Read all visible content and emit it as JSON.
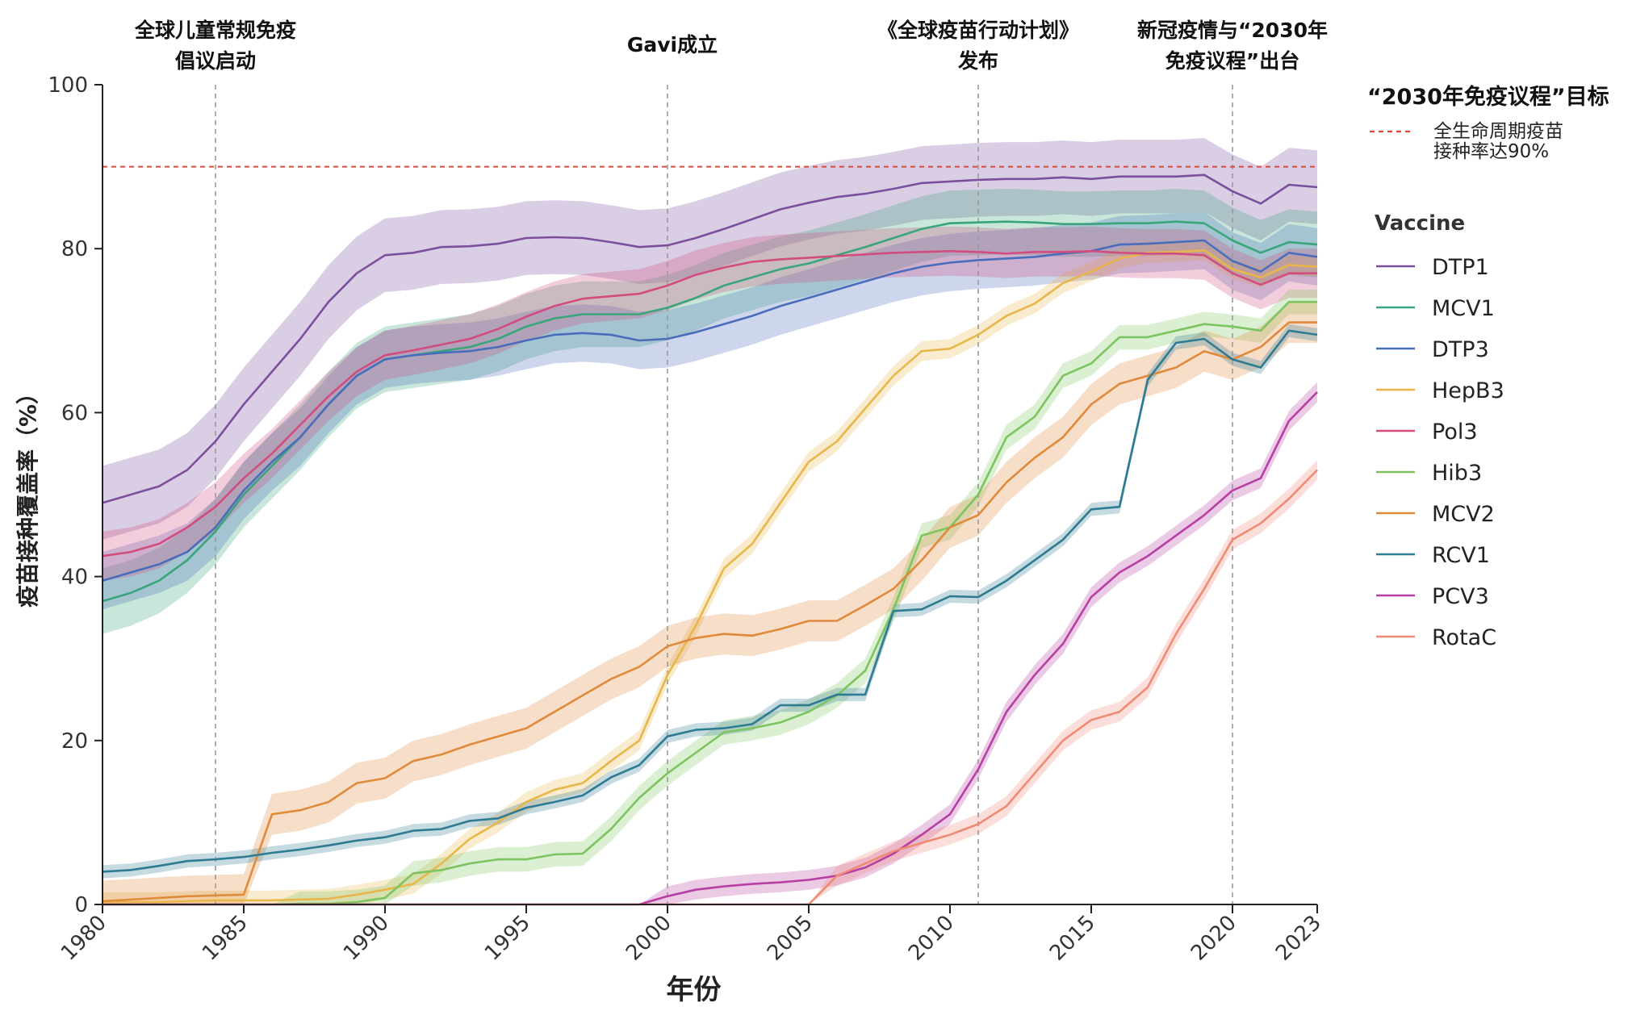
{
  "chart_data": {
    "type": "line",
    "xlabel": "年份",
    "ylabel": "疫苗接种覆盖率（%）",
    "xlim": [
      1980,
      2023
    ],
    "ylim": [
      0,
      100
    ],
    "x_ticks": [
      "1980",
      "1985",
      "1990",
      "1995",
      "2000",
      "2005",
      "2010",
      "2015",
      "2020",
      "2023"
    ],
    "y_ticks": [
      "0",
      "20",
      "40",
      "60",
      "80",
      "100"
    ],
    "grid": false,
    "legend_position": "right",
    "target": {
      "heading": "“2030年免疫议程”目标",
      "line1": "全生命周期疫苗",
      "line2": "接种率达90%",
      "value": 90,
      "color": "#d9473f"
    },
    "legend_title": "Vaccine",
    "events": [
      {
        "x": 1984,
        "line1": "全球儿童常规免疫",
        "line2": "倡议启动"
      },
      {
        "x": 2000,
        "line1": "Gavi成立",
        "line2": ""
      },
      {
        "x": 2011,
        "line1": "《全球疫苗行动计划》",
        "line2": "发布"
      },
      {
        "x": 2020,
        "line1": "新冠疫情与“2030年",
        "line2": "免疫议程”出台"
      }
    ],
    "x": [
      1980,
      1981,
      1982,
      1983,
      1984,
      1985,
      1986,
      1987,
      1988,
      1989,
      1990,
      1991,
      1992,
      1993,
      1994,
      1995,
      1996,
      1997,
      1998,
      1999,
      2000,
      2001,
      2002,
      2003,
      2004,
      2005,
      2006,
      2007,
      2008,
      2009,
      2010,
      2011,
      2012,
      2013,
      2014,
      2015,
      2016,
      2017,
      2018,
      2019,
      2020,
      2021,
      2022,
      2023
    ],
    "series": [
      {
        "name": "DTP1",
        "color": "#7b4f9d",
        "band": 4.5,
        "values": [
          49,
          50,
          51,
          53,
          56.5,
          61,
          65,
          69,
          73.5,
          77,
          79.2,
          79.5,
          80.2,
          80.3,
          80.6,
          81.3,
          81.4,
          81.3,
          80.8,
          80.2,
          80.4,
          81.3,
          82.4,
          83.6,
          84.8,
          85.6,
          86.3,
          86.7,
          87.3,
          88,
          88.2,
          88.4,
          88.5,
          88.5,
          88.7,
          88.5,
          88.8,
          88.8,
          88.8,
          89,
          87,
          85.5,
          87.8,
          87.5
        ]
      },
      {
        "name": "MCV1",
        "color": "#3aa57a",
        "band": 4,
        "values": [
          37,
          38,
          39.5,
          42,
          45.5,
          50,
          53.5,
          57,
          61,
          64.5,
          66.5,
          67,
          67.5,
          68,
          69,
          70.5,
          71.5,
          72,
          72,
          72,
          72.8,
          74,
          75.5,
          76.5,
          77.5,
          78.2,
          79.2,
          80.2,
          81.3,
          82.4,
          83.1,
          83.2,
          83.3,
          83.2,
          83,
          83,
          83.1,
          83.1,
          83.3,
          83.1,
          81,
          79.5,
          80.8,
          80.5
        ]
      },
      {
        "name": "DTP3",
        "color": "#4a6dbb",
        "band": 3.5,
        "values": [
          39.5,
          40.5,
          41.5,
          43,
          46,
          50.5,
          54,
          57,
          61,
          64.5,
          66.5,
          67,
          67.3,
          67.5,
          68,
          68.8,
          69.5,
          69.7,
          69.5,
          68.8,
          69,
          69.8,
          70.8,
          71.8,
          73,
          74,
          75,
          76,
          77,
          77.8,
          78.3,
          78.6,
          78.8,
          79,
          79.4,
          79.7,
          80.5,
          80.6,
          80.8,
          81,
          78.5,
          77.2,
          79.5,
          79
        ]
      },
      {
        "name": "HepB3",
        "color": "#e8b64a",
        "band": 1.2,
        "values": [
          0.3,
          0.3,
          0.3,
          0.4,
          0.5,
          0.5,
          0.5,
          0.6,
          0.7,
          1.2,
          1.8,
          2.5,
          5,
          8,
          10,
          12.5,
          14,
          14.8,
          17.5,
          20,
          28,
          34,
          41,
          44,
          49,
          54,
          56.5,
          60.5,
          64.5,
          67.5,
          67.8,
          69.5,
          71.8,
          73.3,
          75.8,
          77.2,
          78.8,
          79.5,
          79.6,
          79.8,
          77.5,
          76.5,
          78,
          77.8
        ]
      },
      {
        "name": "Pol3",
        "color": "#d24d7e",
        "band": 3,
        "values": [
          42.5,
          43,
          44,
          46,
          48.5,
          52,
          55,
          58.5,
          62,
          65,
          67,
          67.6,
          68.3,
          69,
          70.2,
          71.7,
          73,
          73.9,
          74.2,
          74.5,
          75.5,
          76.8,
          77.7,
          78.4,
          78.7,
          78.9,
          79.1,
          79.3,
          79.5,
          79.6,
          79.7,
          79.6,
          79.4,
          79.6,
          79.6,
          79.7,
          79.5,
          79.4,
          79.4,
          79.2,
          77,
          75.6,
          77,
          77
        ]
      },
      {
        "name": "Hib3",
        "color": "#7cc45f",
        "band": 1.5,
        "values": [
          0,
          0,
          0,
          0,
          0,
          0,
          0,
          0.1,
          0.1,
          0.3,
          0.8,
          3.8,
          4.2,
          5,
          5.5,
          5.5,
          6.1,
          6.2,
          9.2,
          13,
          16,
          18.5,
          21,
          21.5,
          22.2,
          23.5,
          25.5,
          28.5,
          36,
          45,
          46,
          50,
          57,
          59.5,
          64.5,
          66,
          69.2,
          69.2,
          70,
          70.8,
          70.5,
          70,
          73.5,
          73.5
        ]
      },
      {
        "name": "MCV2",
        "color": "#e08a3c",
        "band": 2.5,
        "values": [
          0.4,
          0.6,
          0.8,
          1,
          1.1,
          1.2,
          11,
          11.5,
          12.5,
          14.8,
          15.4,
          17.5,
          18.3,
          19.5,
          20.5,
          21.5,
          23.5,
          25.5,
          27.5,
          29,
          31.5,
          32.5,
          33,
          32.8,
          33.6,
          34.6,
          34.6,
          36.5,
          38.5,
          42,
          46,
          47.5,
          51.5,
          54.5,
          57,
          61,
          63.5,
          64.5,
          65.5,
          67.5,
          66.5,
          68,
          71,
          71
        ]
      },
      {
        "name": "RCV1",
        "color": "#2e7b92",
        "band": 0.8,
        "values": [
          4,
          4.2,
          4.7,
          5.3,
          5.5,
          5.8,
          6.3,
          6.7,
          7.2,
          7.8,
          8.2,
          9,
          9.2,
          10.2,
          10.5,
          11.8,
          12.5,
          13.3,
          15.5,
          17,
          20.5,
          21.3,
          21.5,
          22,
          24.3,
          24.3,
          25.6,
          25.6,
          35.8,
          36,
          37.6,
          37.5,
          39.5,
          42,
          44.5,
          48.2,
          48.5,
          64,
          68.5,
          69,
          66.5,
          65.5,
          70,
          69.5
        ]
      },
      {
        "name": "PCV3",
        "color": "#b83fa3",
        "band": 1.2,
        "values": [
          0,
          0,
          0,
          0,
          0,
          0,
          0,
          0,
          0,
          0,
          0,
          0,
          0,
          0,
          0,
          0,
          0,
          0,
          0,
          0,
          1,
          1.8,
          2.2,
          2.5,
          2.7,
          3,
          3.5,
          4.5,
          6.2,
          8.5,
          11,
          16.5,
          23.5,
          28,
          31.8,
          37.5,
          40.5,
          42.5,
          45,
          47.5,
          50.5,
          52,
          59,
          62.5
        ]
      },
      {
        "name": "RotaC",
        "color": "#ef8a75",
        "band": 1.2,
        "values": [
          0,
          0,
          0,
          0,
          0,
          0,
          0,
          0,
          0,
          0,
          0,
          0,
          0,
          0,
          0,
          0,
          0,
          0,
          0,
          0,
          0,
          0,
          0,
          0,
          0,
          0,
          3.5,
          5,
          6.5,
          7.5,
          8.5,
          9.8,
          12,
          16,
          20,
          22.5,
          23.5,
          26.5,
          33,
          38.5,
          44.5,
          46.5,
          49.5,
          53
        ]
      }
    ]
  }
}
